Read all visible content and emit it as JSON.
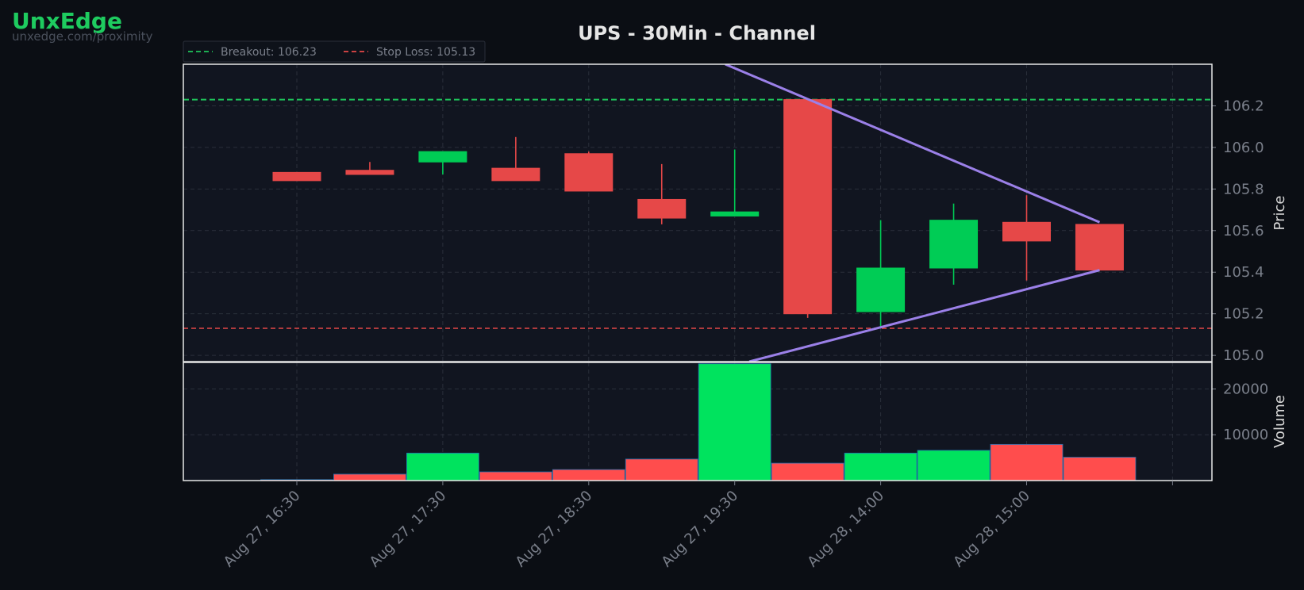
{
  "brand": {
    "name": "UnxEdge",
    "url": "unxedge.com/proximity"
  },
  "colors": {
    "up": "#00cc55",
    "down": "#e64848",
    "vol_up": "#00e35e",
    "vol_down": "#ff4d4d",
    "trendline": "#9b80e8",
    "breakout": "#1ec45a",
    "stop": "#e64848",
    "background": "#0b0e14",
    "panel": "#111520",
    "grid": "#2a2f3a",
    "text": "#7a7f8a",
    "title": "#e6e6e6"
  },
  "chart_data": {
    "type": "candlestick",
    "title": "UPS - 30Min - Channel",
    "ylabel": "Price",
    "volume_label": "Volume",
    "ylim": [
      104.97,
      106.4
    ],
    "volume_ylim": [
      0,
      25800
    ],
    "grid": true,
    "legend": {
      "placement": "top-left",
      "entries": [
        "Breakout: 106.23",
        "Stop Loss: 105.13"
      ]
    },
    "x_ticks": [
      "Aug 27, 16:30",
      "Aug 27, 17:30",
      "Aug 27, 18:30",
      "Aug 27, 19:30",
      "Aug 28, 14:00",
      "Aug 28, 15:00"
    ],
    "y_ticks": [
      "105.0",
      "105.2",
      "105.4",
      "105.6",
      "105.8",
      "106.0",
      "106.2"
    ],
    "volume_ticks": [
      "10000",
      "20000"
    ],
    "breakout": 106.23,
    "stop_loss": 105.13,
    "candles": [
      {
        "open": 105.88,
        "high": 105.88,
        "low": 105.84,
        "close": 105.84,
        "volume": 200
      },
      {
        "open": 105.89,
        "high": 105.93,
        "low": 105.87,
        "close": 105.87,
        "volume": 1400
      },
      {
        "open": 105.93,
        "high": 105.98,
        "low": 105.87,
        "close": 105.98,
        "volume": 6000
      },
      {
        "open": 105.9,
        "high": 106.05,
        "low": 105.84,
        "close": 105.84,
        "volume": 1900
      },
      {
        "open": 105.97,
        "high": 105.98,
        "low": 105.79,
        "close": 105.79,
        "volume": 2400
      },
      {
        "open": 105.75,
        "high": 105.92,
        "low": 105.63,
        "close": 105.66,
        "volume": 4700
      },
      {
        "open": 105.67,
        "high": 105.99,
        "low": 105.67,
        "close": 105.69,
        "volume": 25500
      },
      {
        "open": 106.23,
        "high": 106.23,
        "low": 105.18,
        "close": 105.2,
        "volume": 3800
      },
      {
        "open": 105.21,
        "high": 105.65,
        "low": 105.14,
        "close": 105.42,
        "volume": 6000
      },
      {
        "open": 105.42,
        "high": 105.73,
        "low": 105.34,
        "close": 105.65,
        "volume": 6600
      },
      {
        "open": 105.64,
        "high": 105.77,
        "low": 105.36,
        "close": 105.55,
        "volume": 7900
      },
      {
        "open": 105.63,
        "high": 105.63,
        "low": 105.41,
        "close": 105.41,
        "volume": 5100
      }
    ],
    "trendlines": [
      {
        "from": {
          "x_index": 5.87,
          "price": 106.4
        },
        "to": {
          "x_index": 11,
          "price": 105.64
        }
      },
      {
        "from": {
          "x_index": 6.2,
          "price": 104.97
        },
        "to": {
          "x_index": 11,
          "price": 105.41
        }
      }
    ]
  }
}
